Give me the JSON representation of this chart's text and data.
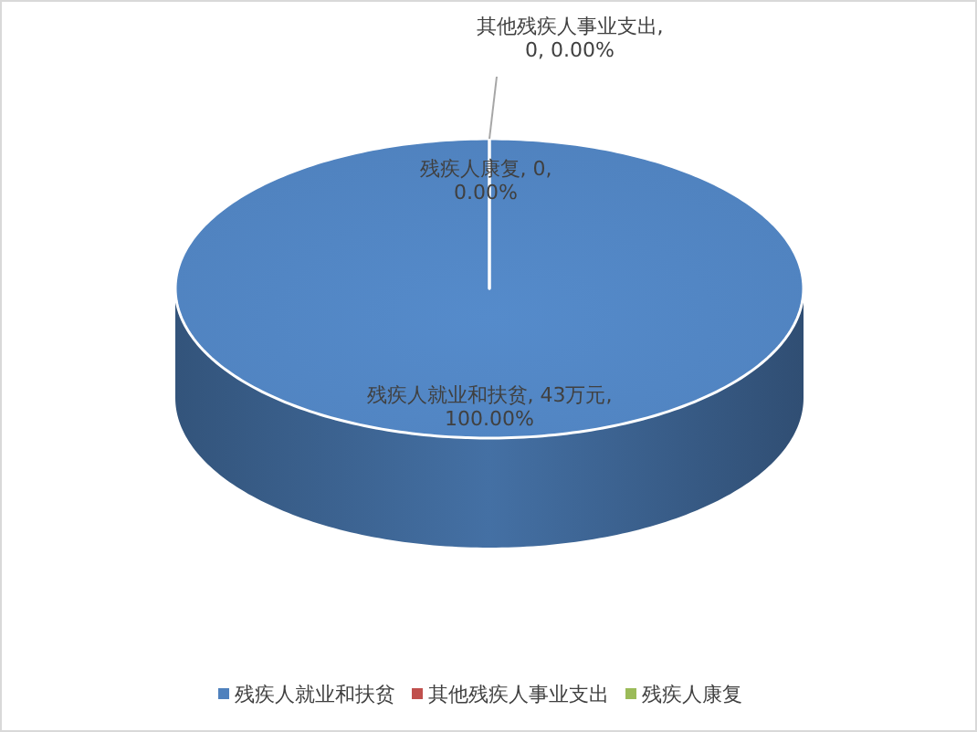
{
  "chart_data": {
    "type": "pie",
    "categories": [
      "残疾人就业和扶贫",
      "其他残疾人事业支出",
      "残疾人康复"
    ],
    "values": [
      43,
      0,
      0
    ],
    "value_labels": [
      "残疾人就业和扶贫, 43万元, 100.00%",
      "其他残疾人事业支出, 0, 0.00%",
      "残疾人康复, 0, 0.00%"
    ],
    "colors": [
      "#4f81bd",
      "#c0504d",
      "#9bbb59"
    ],
    "legend": "bottom"
  }
}
